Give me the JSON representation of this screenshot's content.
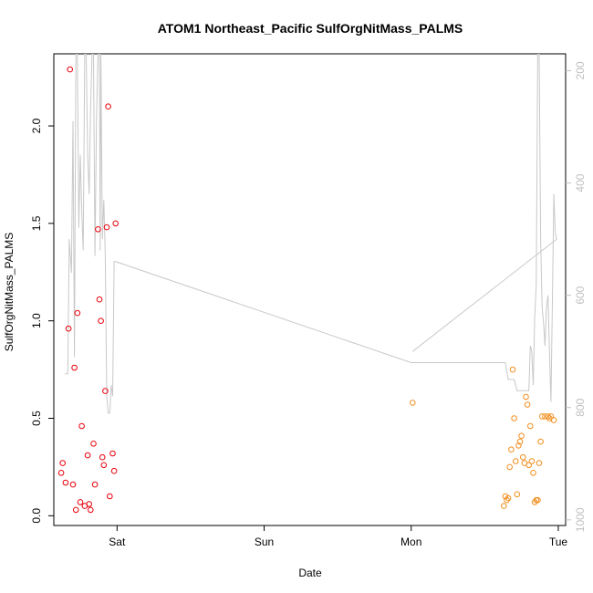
{
  "chart_data": {
    "type": "scatter",
    "title": "ATOM1 Northeast_Pacific SulfOrgNitMass_PALMS",
    "xlabel": "Date",
    "ylabel": "SulfOrgNitMass_PALMS",
    "x_ticks": [
      "Sat",
      "Sun",
      "Mon",
      "Tue"
    ],
    "x_tick_days": [
      1,
      2,
      3,
      4
    ],
    "xlim": [
      0.57,
      4.05
    ],
    "ylim": [
      -0.05,
      2.37
    ],
    "y_ticks": [
      0.0,
      0.5,
      1.0,
      1.5,
      2.0
    ],
    "y_tick_labels": [
      "0.0",
      "0.5",
      "1.0",
      "1.5",
      "2.0"
    ],
    "y2_ticks": [
      200,
      400,
      600,
      800,
      1000
    ],
    "y2_tick_labels": [
      "200",
      "400",
      "600",
      "800",
      "1000"
    ],
    "y2lim": [
      1010,
      170
    ],
    "grid": false,
    "series": [
      {
        "color": "#e8000b",
        "points": [
          [
            0.63,
            0.27
          ],
          [
            0.62,
            0.22
          ],
          [
            0.65,
            0.17
          ],
          [
            0.67,
            0.96
          ],
          [
            0.68,
            2.29
          ],
          [
            0.7,
            0.16
          ],
          [
            0.71,
            0.76
          ],
          [
            0.72,
            0.03
          ],
          [
            0.73,
            1.04
          ],
          [
            0.75,
            0.07
          ],
          [
            0.76,
            0.46
          ],
          [
            0.78,
            0.05
          ],
          [
            0.8,
            0.31
          ],
          [
            0.81,
            0.06
          ],
          [
            0.82,
            0.03
          ],
          [
            0.84,
            0.37
          ],
          [
            0.85,
            0.16
          ],
          [
            0.87,
            1.47
          ],
          [
            0.88,
            1.11
          ],
          [
            0.89,
            1.0
          ],
          [
            0.9,
            0.3
          ],
          [
            0.91,
            0.26
          ],
          [
            0.92,
            0.64
          ],
          [
            0.93,
            1.48
          ],
          [
            0.94,
            2.1
          ],
          [
            0.95,
            0.1
          ],
          [
            0.97,
            0.32
          ],
          [
            0.98,
            0.23
          ],
          [
            0.99,
            1.5
          ]
        ]
      },
      {
        "color": "#f28e1e",
        "points": [
          [
            3.01,
            0.58
          ],
          [
            3.63,
            0.05
          ],
          [
            3.64,
            0.1
          ],
          [
            3.65,
            0.08
          ],
          [
            3.66,
            0.09
          ],
          [
            3.67,
            0.25
          ],
          [
            3.68,
            0.34
          ],
          [
            3.69,
            0.75
          ],
          [
            3.7,
            0.5
          ],
          [
            3.71,
            0.28
          ],
          [
            3.72,
            0.11
          ],
          [
            3.73,
            0.36
          ],
          [
            3.74,
            0.38
          ],
          [
            3.75,
            0.41
          ],
          [
            3.76,
            0.3
          ],
          [
            3.77,
            0.27
          ],
          [
            3.78,
            0.61
          ],
          [
            3.79,
            0.57
          ],
          [
            3.8,
            0.26
          ],
          [
            3.81,
            0.46
          ],
          [
            3.82,
            0.28
          ],
          [
            3.83,
            0.22
          ],
          [
            3.84,
            0.07
          ],
          [
            3.85,
            0.08
          ],
          [
            3.86,
            0.08
          ],
          [
            3.87,
            0.27
          ],
          [
            3.88,
            0.38
          ],
          [
            3.89,
            0.51
          ],
          [
            3.91,
            0.51
          ],
          [
            3.93,
            0.51
          ],
          [
            3.94,
            0.5
          ],
          [
            3.95,
            0.51
          ],
          [
            3.97,
            0.49
          ]
        ]
      }
    ],
    "secondary_line": {
      "color": "#c8c8c8",
      "axis": "right",
      "points": [
        [
          0.645,
          740
        ],
        [
          0.665,
          740
        ],
        [
          0.675,
          500
        ],
        [
          0.69,
          560
        ],
        [
          0.7,
          290
        ],
        [
          0.71,
          710
        ],
        [
          0.72,
          170
        ],
        [
          0.73,
          170
        ],
        [
          0.74,
          480
        ],
        [
          0.75,
          350
        ],
        [
          0.76,
          450
        ],
        [
          0.77,
          520
        ],
        [
          0.78,
          170
        ],
        [
          0.79,
          170
        ],
        [
          0.8,
          350
        ],
        [
          0.81,
          420
        ],
        [
          0.82,
          270
        ],
        [
          0.83,
          170
        ],
        [
          0.84,
          170
        ],
        [
          0.85,
          530
        ],
        [
          0.86,
          280
        ],
        [
          0.87,
          170
        ],
        [
          0.88,
          170
        ],
        [
          0.885,
          520
        ],
        [
          0.89,
          170
        ],
        [
          0.9,
          500
        ],
        [
          0.91,
          430
        ],
        [
          0.92,
          530
        ],
        [
          0.93,
          780
        ],
        [
          0.94,
          810
        ],
        [
          0.95,
          810
        ],
        [
          0.96,
          760
        ],
        [
          0.97,
          780
        ],
        [
          0.98,
          540
        ],
        [
          0.99,
          540
        ],
        [
          3.0,
          720
        ],
        [
          3.62,
          720
        ],
        [
          3.64,
          720
        ],
        [
          3.66,
          750
        ],
        [
          3.7,
          750
        ],
        [
          3.72,
          770
        ],
        [
          3.75,
          770
        ],
        [
          3.8,
          770
        ],
        [
          3.81,
          690
        ],
        [
          3.82,
          700
        ],
        [
          3.83,
          760
        ],
        [
          3.84,
          640
        ],
        [
          3.85,
          580
        ],
        [
          3.86,
          170
        ],
        [
          3.87,
          170
        ],
        [
          3.88,
          500
        ],
        [
          3.89,
          620
        ],
        [
          3.9,
          650
        ],
        [
          3.91,
          690
        ],
        [
          3.92,
          620
        ],
        [
          3.93,
          600
        ],
        [
          3.94,
          700
        ],
        [
          3.95,
          790
        ],
        [
          3.96,
          610
        ],
        [
          3.97,
          420
        ],
        [
          3.98,
          490
        ],
        [
          3.99,
          500
        ],
        [
          3.01,
          700
        ]
      ]
    }
  }
}
